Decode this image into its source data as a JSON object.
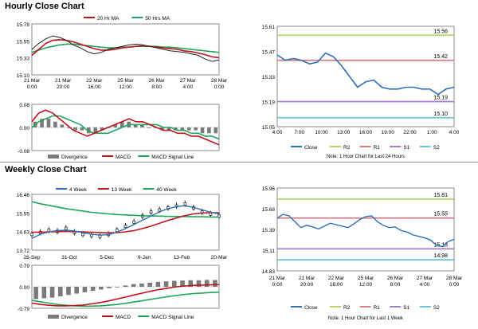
{
  "sections": {
    "hourly_title": "Hourly Close Chart",
    "weekly_title": "Weekly Close Chart"
  },
  "colors": {
    "price": "#1f1f1f",
    "ma_short": "#c0121b",
    "ma_long": "#1fa65a",
    "close": "#2e6fb5",
    "r2": "#b6d36a",
    "r1": "#d97f7f",
    "s1": "#9f7fc8",
    "s2": "#6fc2d6",
    "divergence": "#7a7a7a",
    "macd": "#c0121b",
    "signal": "#1fa65a",
    "wk4": "#2e6fb5",
    "wk13": "#c0121b",
    "wk40": "#1fa65a"
  },
  "chart_data": [
    {
      "id": "hourly_price",
      "type": "line",
      "legend": [
        "20 Hr MA",
        "50 Hrs MA"
      ],
      "yticks": [
        "15.78",
        "15.55",
        "15.33",
        "15.10"
      ],
      "ylim": [
        15.1,
        15.78
      ],
      "xticks": [
        [
          "21 Mar",
          "0:00"
        ],
        [
          "21 Mar",
          "20:00"
        ],
        [
          "22 Mar",
          "16:00"
        ],
        [
          "25 Mar",
          "12:00"
        ],
        [
          "26 Mar",
          "8:00"
        ],
        [
          "27 Mar",
          "4:00"
        ],
        [
          "28 Mar",
          "0:00"
        ]
      ],
      "series": [
        {
          "name": "Price",
          "values": [
            15.44,
            15.52,
            15.58,
            15.62,
            15.6,
            15.56,
            15.5,
            15.46,
            15.41,
            15.38,
            15.4,
            15.44,
            15.46,
            15.48,
            15.5,
            15.51,
            15.5,
            15.48,
            15.46,
            15.44,
            15.42,
            15.41,
            15.4,
            15.38,
            15.36,
            15.31,
            15.28,
            15.3
          ]
        },
        {
          "name": "20 Hr MA",
          "values": [
            15.36,
            15.44,
            15.52,
            15.56,
            15.57,
            15.56,
            15.54,
            15.51,
            15.48,
            15.45,
            15.43,
            15.43,
            15.44,
            15.46,
            15.47,
            15.48,
            15.49,
            15.48,
            15.47,
            15.46,
            15.45,
            15.44,
            15.42,
            15.41,
            15.39,
            15.37,
            15.34,
            15.33
          ]
        },
        {
          "name": "50 Hrs MA",
          "values": [
            15.4,
            15.43,
            15.46,
            15.48,
            15.5,
            15.51,
            15.51,
            15.5,
            15.49,
            15.48,
            15.47,
            15.46,
            15.46,
            15.47,
            15.47,
            15.48,
            15.48,
            15.48,
            15.48,
            15.47,
            15.47,
            15.46,
            15.45,
            15.44,
            15.43,
            15.42,
            15.41,
            15.4
          ]
        }
      ]
    },
    {
      "id": "hourly_macd",
      "type": "line",
      "legend": [
        "Divergence",
        "MACD",
        "MACD Signal Line"
      ],
      "yticks": [
        "0.08",
        "0.00",
        "-0.08"
      ],
      "ylim": [
        -0.08,
        0.08
      ],
      "series": [
        {
          "name": "Divergence",
          "values": [
            0.02,
            0.03,
            0.03,
            0.02,
            0.01,
            0.0,
            -0.01,
            -0.01,
            -0.02,
            -0.02,
            -0.01,
            0.0,
            0.01,
            0.02,
            0.02,
            0.01,
            0.01,
            0.0,
            0.0,
            -0.01,
            -0.01,
            -0.01,
            -0.01,
            -0.01,
            -0.01,
            -0.02,
            -0.02,
            -0.02
          ]
        },
        {
          "name": "MACD",
          "values": [
            0.02,
            0.05,
            0.06,
            0.05,
            0.03,
            0.01,
            -0.01,
            -0.02,
            -0.03,
            -0.02,
            -0.01,
            0.0,
            0.01,
            0.02,
            0.03,
            0.02,
            0.02,
            0.01,
            0.0,
            -0.01,
            -0.01,
            -0.02,
            -0.02,
            -0.03,
            -0.03,
            -0.04,
            -0.05,
            -0.06
          ]
        },
        {
          "name": "MACD Signal Line",
          "values": [
            0.0,
            0.02,
            0.03,
            0.04,
            0.04,
            0.03,
            0.02,
            0.01,
            -0.01,
            -0.02,
            -0.02,
            -0.02,
            -0.01,
            0.0,
            0.01,
            0.01,
            0.01,
            0.01,
            0.01,
            0.0,
            0.0,
            -0.01,
            -0.01,
            -0.02,
            -0.02,
            -0.03,
            -0.03,
            -0.04
          ]
        }
      ]
    },
    {
      "id": "hourly_close_24h",
      "type": "line",
      "yticks": [
        "15.61",
        "15.47",
        "15.33",
        "15.19",
        "15.05"
      ],
      "ylim": [
        15.05,
        15.61
      ],
      "xticks": [
        "4:00",
        "7:00",
        "10:00",
        "13:00",
        "16:00",
        "19:00",
        "22:00",
        "1:00",
        "4:00"
      ],
      "levels": [
        {
          "name": "R2",
          "value": 15.56,
          "label": "15.56"
        },
        {
          "name": "R1",
          "value": 15.42,
          "label": "15.42"
        },
        {
          "name": "S1",
          "value": 15.19,
          "label": "15.19"
        },
        {
          "name": "S2",
          "value": 15.1,
          "label": "15.10"
        }
      ],
      "series": [
        {
          "name": "Close",
          "values": [
            15.45,
            15.42,
            15.43,
            15.42,
            15.4,
            15.41,
            15.46,
            15.44,
            15.39,
            15.33,
            15.27,
            15.3,
            15.31,
            15.27,
            15.26,
            15.26,
            15.27,
            15.27,
            15.26,
            15.26,
            15.23,
            15.26,
            15.27
          ]
        }
      ],
      "legend": [
        "Close",
        "R2",
        "R1",
        "S1",
        "S2"
      ],
      "note": "Note: 1 Hour Chart for Last 24 Hours"
    },
    {
      "id": "weekly_price",
      "type": "line",
      "legend": [
        "4 Week",
        "13 Week",
        "40 Week"
      ],
      "yticks": [
        "16.46",
        "15.55",
        "14.63",
        "13.72"
      ],
      "ylim": [
        13.72,
        16.46
      ],
      "xticks": [
        "26-Sep",
        "31-Oct",
        "5-Dec",
        "9-Jan",
        "13-Feb",
        "20-Mar"
      ],
      "series": [
        {
          "name": "Price",
          "values": [
            14.5,
            14.6,
            14.7,
            14.65,
            14.8,
            14.6,
            14.5,
            14.45,
            14.4,
            14.5,
            14.7,
            14.9,
            15.1,
            15.4,
            15.6,
            15.7,
            15.8,
            15.9,
            16.0,
            15.8,
            15.6,
            15.5,
            15.4
          ]
        },
        {
          "name": "4 Week",
          "values": [
            14.3,
            14.5,
            14.62,
            14.68,
            14.7,
            14.66,
            14.58,
            14.5,
            14.46,
            14.48,
            14.6,
            14.78,
            14.98,
            15.2,
            15.4,
            15.6,
            15.76,
            15.86,
            15.9,
            15.82,
            15.7,
            15.58,
            15.5
          ]
        },
        {
          "name": "13 Week",
          "values": [
            14.6,
            14.6,
            14.62,
            14.63,
            14.64,
            14.63,
            14.62,
            14.6,
            14.58,
            14.57,
            14.58,
            14.62,
            14.68,
            14.78,
            14.9,
            15.04,
            15.18,
            15.3,
            15.42,
            15.5,
            15.54,
            15.56,
            15.56
          ]
        },
        {
          "name": "40 Week",
          "values": [
            16.1,
            16.0,
            15.92,
            15.84,
            15.76,
            15.7,
            15.64,
            15.58,
            15.54,
            15.5,
            15.47,
            15.45,
            15.43,
            15.41,
            15.4,
            15.39,
            15.38,
            15.37,
            15.37,
            15.36,
            15.36,
            15.35,
            15.35
          ]
        }
      ]
    },
    {
      "id": "weekly_macd",
      "type": "line",
      "legend": [
        "Divergence",
        "MACD",
        "MACD Signal Line"
      ],
      "yticks": [
        "0.79",
        "0.00",
        "-0.79"
      ],
      "ylim": [
        -0.79,
        0.79
      ],
      "series": [
        {
          "name": "Divergence",
          "values": [
            -0.45,
            -0.42,
            -0.4,
            -0.35,
            -0.3,
            -0.25,
            -0.2,
            -0.15,
            -0.1,
            -0.05,
            0.0,
            0.05,
            0.1,
            0.12,
            0.15,
            0.18,
            0.2,
            0.22,
            0.23,
            0.24,
            0.24,
            0.25,
            0.25
          ]
        },
        {
          "name": "MACD",
          "values": [
            -0.6,
            -0.65,
            -0.68,
            -0.7,
            -0.7,
            -0.69,
            -0.67,
            -0.63,
            -0.58,
            -0.52,
            -0.45,
            -0.38,
            -0.3,
            -0.23,
            -0.16,
            -0.1,
            -0.05,
            0.0,
            0.03,
            0.05,
            0.06,
            0.07,
            0.08
          ]
        },
        {
          "name": "MACD Signal Line",
          "values": [
            -0.5,
            -0.55,
            -0.6,
            -0.65,
            -0.68,
            -0.7,
            -0.71,
            -0.71,
            -0.7,
            -0.68,
            -0.65,
            -0.61,
            -0.56,
            -0.51,
            -0.46,
            -0.41,
            -0.36,
            -0.32,
            -0.28,
            -0.25,
            -0.23,
            -0.21,
            -0.2
          ]
        }
      ]
    },
    {
      "id": "weekly_close_1w",
      "type": "line",
      "yticks": [
        "15.96",
        "15.68",
        "15.39",
        "15.11",
        "14.83"
      ],
      "ylim": [
        14.83,
        15.96
      ],
      "xticks": [
        [
          "21 Mar",
          "0:00"
        ],
        [
          "21 Mar",
          "20:00"
        ],
        [
          "22 Mar",
          "16:00"
        ],
        [
          "25 Mar",
          "12:00"
        ],
        [
          "26 Mar",
          "8:00"
        ],
        [
          "27 Mar",
          "4:00"
        ],
        [
          "28 Mar",
          "0:00"
        ]
      ],
      "levels": [
        {
          "name": "R2",
          "value": 15.81,
          "label": "15.81"
        },
        {
          "name": "R1",
          "value": 15.55,
          "label": "15.55"
        },
        {
          "name": "S1",
          "value": 15.13,
          "label": "15.13"
        },
        {
          "name": "S2",
          "value": 14.98,
          "label": "14.98"
        }
      ],
      "series": [
        {
          "name": "Close",
          "values": [
            15.55,
            15.6,
            15.58,
            15.5,
            15.42,
            15.45,
            15.43,
            15.4,
            15.44,
            15.48,
            15.46,
            15.44,
            15.42,
            15.47,
            15.53,
            15.57,
            15.58,
            15.5,
            15.45,
            15.42,
            15.43,
            15.38,
            15.36,
            15.32,
            15.3,
            15.28,
            15.25,
            15.18,
            15.16,
            15.23,
            15.26
          ]
        }
      ],
      "legend": [
        "Close",
        "R2",
        "R1",
        "S1",
        "S2"
      ],
      "note": "Note: 1 Hour Chart for Last 1 Week"
    }
  ]
}
